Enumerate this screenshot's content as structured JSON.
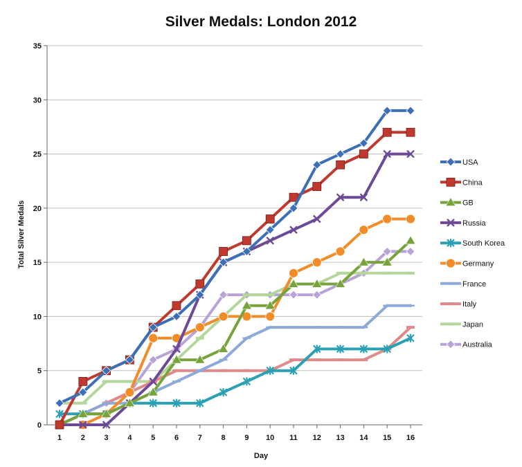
{
  "chart_data": {
    "type": "line",
    "title": "Silver Medals: London 2012",
    "xlabel": "Day",
    "ylabel": "Total Silver Medals",
    "x": [
      1,
      2,
      3,
      4,
      5,
      6,
      7,
      8,
      9,
      10,
      11,
      12,
      13,
      14,
      15,
      16
    ],
    "xlim": [
      1,
      16
    ],
    "ylim": [
      0,
      35
    ],
    "yticks": [
      0,
      5,
      10,
      15,
      20,
      25,
      30,
      35
    ],
    "grid": "horizontal",
    "legend_position": "right",
    "series": [
      {
        "name": "USA",
        "color": "#3b6fb6",
        "marker": "diamond",
        "values": [
          2,
          3,
          5,
          6,
          9,
          10,
          12,
          15,
          16,
          18,
          20,
          24,
          25,
          26,
          29,
          29
        ]
      },
      {
        "name": "China",
        "color": "#c0392f",
        "marker": "square",
        "values": [
          0,
          4,
          5,
          6,
          9,
          11,
          13,
          16,
          17,
          19,
          21,
          22,
          24,
          25,
          27,
          27
        ]
      },
      {
        "name": "GB",
        "color": "#77a33b",
        "marker": "triangle",
        "values": [
          0,
          1,
          1,
          2,
          3,
          6,
          6,
          7,
          11,
          11,
          13,
          13,
          13,
          15,
          15,
          17
        ]
      },
      {
        "name": "Russia",
        "color": "#6e4a96",
        "marker": "x",
        "values": [
          0,
          0,
          0,
          2,
          4,
          7,
          12,
          15,
          16,
          17,
          18,
          19,
          21,
          21,
          25,
          25
        ]
      },
      {
        "name": "South Korea",
        "color": "#2aa1b3",
        "marker": "asterisk",
        "values": [
          1,
          1,
          1,
          2,
          2,
          2,
          2,
          3,
          4,
          5,
          5,
          7,
          7,
          7,
          7,
          8
        ]
      },
      {
        "name": "Germany",
        "color": "#f28c28",
        "marker": "circle",
        "values": [
          0,
          0,
          1,
          3,
          8,
          8,
          9,
          10,
          10,
          10,
          14,
          15,
          16,
          18,
          19,
          19
        ]
      },
      {
        "name": "France",
        "color": "#8da9d8",
        "marker": "plus",
        "values": [
          0,
          1,
          2,
          2,
          3,
          4,
          5,
          6,
          8,
          9,
          9,
          9,
          9,
          9,
          11,
          11
        ]
      },
      {
        "name": "Italy",
        "color": "#df8a8a",
        "marker": "dash",
        "values": [
          0,
          1,
          2,
          3,
          4,
          5,
          5,
          5,
          5,
          5,
          6,
          6,
          6,
          6,
          7,
          9
        ]
      },
      {
        "name": "Japan",
        "color": "#b5d69b",
        "marker": "dash",
        "values": [
          2,
          2,
          4,
          4,
          4,
          6,
          8,
          10,
          12,
          12,
          13,
          13,
          14,
          14,
          14,
          14
        ]
      },
      {
        "name": "Australia",
        "color": "#b9a2d6",
        "marker": "diamond",
        "values": [
          0,
          1,
          2,
          3,
          6,
          7,
          9,
          12,
          12,
          12,
          12,
          12,
          13,
          14,
          16,
          16
        ]
      }
    ]
  }
}
